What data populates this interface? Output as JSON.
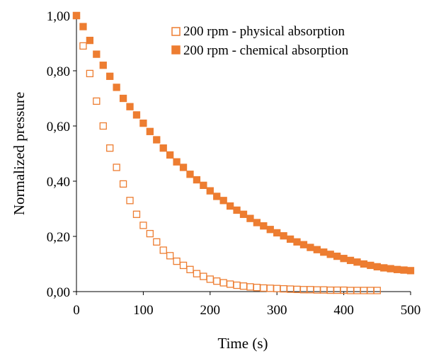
{
  "chart_data": {
    "type": "scatter",
    "title": "",
    "xlabel": "Time (s)",
    "ylabel": "Normalized pressure",
    "xlim": [
      0,
      500
    ],
    "ylim": [
      0,
      1
    ],
    "x_ticks": [
      0,
      100,
      200,
      300,
      400,
      500
    ],
    "x_tick_labels": [
      "0",
      "100",
      "200",
      "300",
      "400",
      "500"
    ],
    "y_ticks": [
      0,
      0.2,
      0.4,
      0.6,
      0.8,
      1.0
    ],
    "y_tick_labels": [
      "0,00",
      "0,20",
      "0,40",
      "0,60",
      "0,80",
      "1,00"
    ],
    "grid": false,
    "legend_position": "top-right",
    "series": [
      {
        "name": "200 rpm - physical absorption",
        "marker": "hollow-square",
        "color": "#ED7D31",
        "x": [
          0,
          10,
          20,
          30,
          40,
          50,
          60,
          70,
          80,
          90,
          100,
          110,
          120,
          130,
          140,
          150,
          160,
          170,
          180,
          190,
          200,
          210,
          220,
          230,
          240,
          250,
          260,
          270,
          280,
          290,
          300,
          310,
          320,
          330,
          340,
          350,
          360,
          370,
          380,
          390,
          400,
          410,
          420,
          430,
          440,
          450
        ],
        "y": [
          1.0,
          0.89,
          0.79,
          0.69,
          0.6,
          0.52,
          0.45,
          0.39,
          0.33,
          0.28,
          0.24,
          0.21,
          0.18,
          0.15,
          0.13,
          0.11,
          0.095,
          0.08,
          0.065,
          0.055,
          0.045,
          0.038,
          0.032,
          0.027,
          0.023,
          0.02,
          0.017,
          0.015,
          0.013,
          0.012,
          0.011,
          0.01,
          0.009,
          0.008,
          0.007,
          0.007,
          0.006,
          0.006,
          0.005,
          0.005,
          0.005,
          0.004,
          0.004,
          0.004,
          0.004,
          0.004
        ]
      },
      {
        "name": "200 rpm - chemical absorption",
        "marker": "filled-square",
        "color": "#ED7D31",
        "x": [
          0,
          10,
          20,
          30,
          40,
          50,
          60,
          70,
          80,
          90,
          100,
          110,
          120,
          130,
          140,
          150,
          160,
          170,
          180,
          190,
          200,
          210,
          220,
          230,
          240,
          250,
          260,
          270,
          280,
          290,
          300,
          310,
          320,
          330,
          340,
          350,
          360,
          370,
          380,
          390,
          400,
          410,
          420,
          430,
          440,
          450,
          460,
          470,
          480,
          490,
          500
        ],
        "y": [
          1.0,
          0.96,
          0.91,
          0.86,
          0.82,
          0.78,
          0.74,
          0.7,
          0.67,
          0.64,
          0.61,
          0.58,
          0.55,
          0.52,
          0.495,
          0.47,
          0.45,
          0.425,
          0.405,
          0.385,
          0.365,
          0.345,
          0.33,
          0.31,
          0.295,
          0.28,
          0.265,
          0.25,
          0.238,
          0.225,
          0.213,
          0.202,
          0.19,
          0.18,
          0.17,
          0.16,
          0.152,
          0.143,
          0.135,
          0.128,
          0.12,
          0.113,
          0.107,
          0.1,
          0.095,
          0.09,
          0.086,
          0.083,
          0.08,
          0.078,
          0.076
        ]
      }
    ]
  }
}
